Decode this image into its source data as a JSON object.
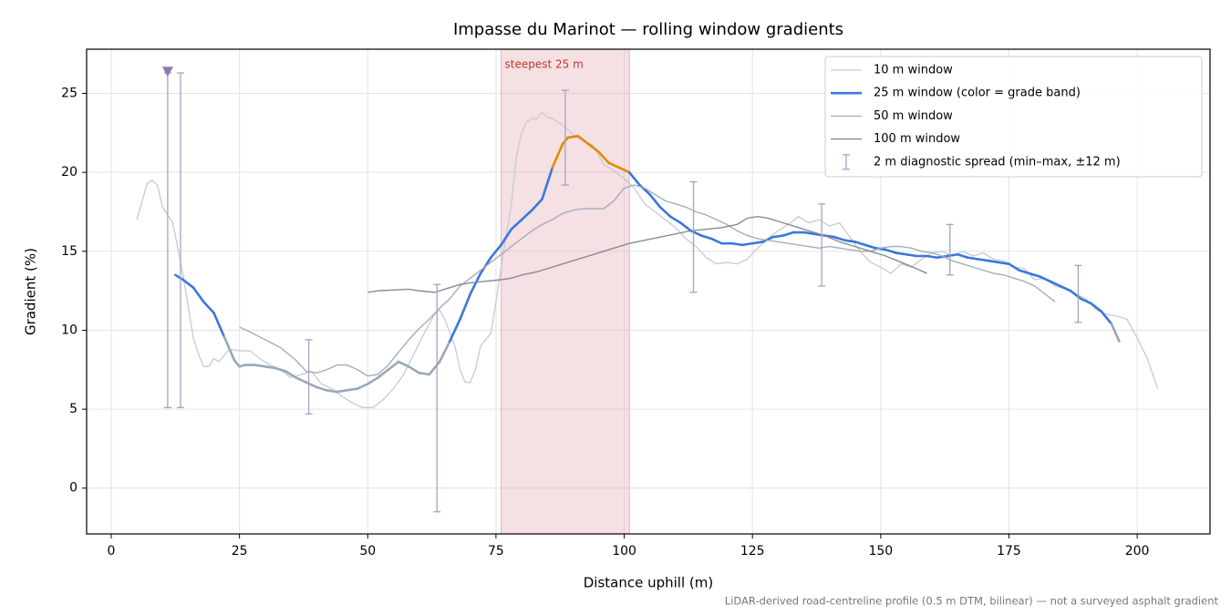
{
  "chart_data": {
    "type": "line",
    "title": "Impasse du Marinot — rolling window gradients",
    "xlabel": "Distance uphill (m)",
    "ylabel": "Gradient (%)",
    "footnote": "LiDAR-derived road-centreline profile (0.5 m DTM, bilinear) — not a surveyed asphalt gradient",
    "xlim": [
      -4.8,
      214.2
    ],
    "ylim": [
      -2.9,
      27.8
    ],
    "xticks": [
      0,
      25,
      50,
      75,
      100,
      125,
      150,
      175,
      200
    ],
    "yticks": [
      0,
      5,
      10,
      15,
      20,
      25
    ],
    "grid": true,
    "legend": "upper right",
    "highlight": {
      "label": "steepest 25 m",
      "x": [
        76,
        101
      ],
      "color": "#e3a7b0"
    },
    "series": [
      {
        "name": "10 m window",
        "color": "#c5cad3",
        "linewidth": 1.3,
        "x": [
          5,
          7,
          8,
          9,
          10,
          12,
          14,
          16,
          17,
          18,
          19,
          20,
          21,
          23,
          25,
          27,
          29,
          31,
          33,
          35,
          37,
          39,
          41,
          43,
          45,
          47,
          49,
          51,
          53,
          55,
          57,
          59,
          61,
          63,
          64,
          65,
          67,
          68,
          69,
          70,
          71,
          72,
          74,
          75,
          76,
          78,
          79,
          80,
          81,
          82,
          83,
          84,
          85,
          86,
          88,
          90,
          92,
          94,
          96,
          98,
          100,
          102,
          104,
          106,
          108,
          110,
          112,
          114,
          116,
          118,
          120,
          122,
          124,
          126,
          128,
          130,
          132,
          134,
          136,
          138,
          140,
          142,
          144,
          146,
          148,
          150,
          152,
          154,
          156,
          158,
          160,
          162,
          164,
          166,
          168,
          170,
          172,
          174,
          176,
          178,
          180,
          182,
          184,
          186,
          188,
          190,
          192,
          194,
          196,
          198,
          200,
          202,
          204
        ],
        "values": [
          17.0,
          19.3,
          19.5,
          19.2,
          17.8,
          16.8,
          13.5,
          9.5,
          8.5,
          7.7,
          7.7,
          8.2,
          8.0,
          8.8,
          8.7,
          8.7,
          8.2,
          7.8,
          7.5,
          7.0,
          7.2,
          7.4,
          6.6,
          6.3,
          5.8,
          5.4,
          5.1,
          5.1,
          5.6,
          6.3,
          7.2,
          8.5,
          9.8,
          11.0,
          11.3,
          10.7,
          9.0,
          7.5,
          6.7,
          6.7,
          7.5,
          9.0,
          9.8,
          11.8,
          14.0,
          18.0,
          21.0,
          22.5,
          23.2,
          23.4,
          23.4,
          23.8,
          23.5,
          23.4,
          23.0,
          22.4,
          22.0,
          21.7,
          20.5,
          20.1,
          19.6,
          19.0,
          18.0,
          17.5,
          17.0,
          16.5,
          15.8,
          15.3,
          14.6,
          14.2,
          14.3,
          14.2,
          14.5,
          15.2,
          15.8,
          16.3,
          16.7,
          17.2,
          16.8,
          17.0,
          16.6,
          16.8,
          15.9,
          15.0,
          14.3,
          14.0,
          13.6,
          14.2,
          14.0,
          14.5,
          14.9,
          15.0,
          14.7,
          15.0,
          14.7,
          14.9,
          14.5,
          14.4,
          14.0,
          13.9,
          13.2,
          13.3,
          12.8,
          12.6,
          12.3,
          12.0,
          11.3,
          11.0,
          10.9,
          10.7,
          9.5,
          8.2,
          6.3
        ]
      },
      {
        "name": "25 m window (color = grade band)",
        "color": "#3a78d8",
        "linewidth": 2.6,
        "grade_bands": {
          "thresholds": [
            10,
            20
          ],
          "colors": [
            "#9aa7b8",
            "#3a78d8",
            "#e08a00"
          ]
        },
        "x": [
          12.5,
          14,
          16,
          18,
          20,
          22,
          24,
          25,
          26,
          28,
          30,
          32,
          34,
          36,
          38,
          40,
          42,
          44,
          46,
          48,
          50,
          52,
          54,
          56,
          58,
          60,
          62,
          64,
          66,
          68,
          70,
          72,
          74,
          76,
          78,
          80,
          82,
          84,
          86,
          88,
          89,
          91,
          93,
          95,
          97,
          99,
          101,
          103,
          105,
          107,
          109,
          111,
          113,
          115,
          117,
          119,
          121,
          123,
          125,
          127,
          129,
          131,
          133,
          135,
          137,
          139,
          141,
          143,
          145,
          147,
          149,
          151,
          153,
          155,
          157,
          159,
          161,
          163,
          165,
          167,
          169,
          171,
          173,
          175,
          177,
          179,
          181,
          183,
          185,
          187,
          189,
          191,
          193,
          195,
          196.5
        ],
        "values": [
          13.5,
          13.2,
          12.7,
          11.8,
          11.1,
          9.6,
          8.1,
          7.7,
          7.8,
          7.8,
          7.7,
          7.6,
          7.4,
          7.0,
          6.7,
          6.4,
          6.2,
          6.1,
          6.2,
          6.3,
          6.6,
          7.0,
          7.5,
          8.0,
          7.7,
          7.3,
          7.2,
          8.0,
          9.3,
          10.7,
          12.3,
          13.6,
          14.6,
          15.4,
          16.4,
          17.0,
          17.6,
          18.3,
          20.3,
          21.8,
          22.2,
          22.3,
          21.8,
          21.3,
          20.6,
          20.3,
          20.0,
          19.2,
          18.6,
          17.8,
          17.2,
          16.8,
          16.3,
          16.0,
          15.8,
          15.5,
          15.5,
          15.4,
          15.5,
          15.6,
          15.9,
          16.0,
          16.2,
          16.2,
          16.1,
          16.0,
          15.9,
          15.7,
          15.6,
          15.4,
          15.2,
          15.1,
          14.9,
          14.8,
          14.7,
          14.7,
          14.6,
          14.7,
          14.8,
          14.6,
          14.5,
          14.4,
          14.3,
          14.2,
          13.8,
          13.6,
          13.4,
          13.1,
          12.8,
          12.5,
          12.0,
          11.7,
          11.2,
          10.4,
          9.3
        ]
      },
      {
        "name": "50 m window",
        "color": "#a4adbb",
        "linewidth": 1.4,
        "x": [
          25,
          27,
          30,
          33,
          36,
          38,
          40,
          42,
          44,
          46,
          48,
          50,
          52,
          54,
          56,
          58,
          60,
          62,
          64,
          66,
          68,
          70,
          72,
          74,
          76,
          78,
          80,
          82,
          84,
          86,
          88,
          90,
          92,
          94,
          96,
          98,
          100,
          102,
          104,
          106,
          108,
          110,
          112,
          114,
          116,
          118,
          120,
          122,
          124,
          126,
          128,
          130,
          132,
          134,
          136,
          138,
          140,
          142,
          144,
          146,
          148,
          150,
          152,
          154,
          156,
          158,
          160,
          162,
          164,
          166,
          168,
          170,
          172,
          174,
          176,
          178,
          180,
          182,
          184
        ],
        "values": [
          10.2,
          9.9,
          9.4,
          8.9,
          8.1,
          7.4,
          7.3,
          7.5,
          7.8,
          7.8,
          7.5,
          7.1,
          7.2,
          7.8,
          8.6,
          9.4,
          10.1,
          10.7,
          11.4,
          12.0,
          12.8,
          13.3,
          13.8,
          14.3,
          14.8,
          15.3,
          15.8,
          16.3,
          16.7,
          17.0,
          17.4,
          17.6,
          17.7,
          17.7,
          17.7,
          18.2,
          19.0,
          19.2,
          19.0,
          18.6,
          18.2,
          18.0,
          17.8,
          17.5,
          17.3,
          17.0,
          16.7,
          16.3,
          16.0,
          15.8,
          15.7,
          15.6,
          15.5,
          15.4,
          15.3,
          15.2,
          15.3,
          15.2,
          15.1,
          15.0,
          15.0,
          15.2,
          15.3,
          15.3,
          15.2,
          15.0,
          14.9,
          14.7,
          14.4,
          14.2,
          14.0,
          13.8,
          13.6,
          13.5,
          13.3,
          13.1,
          12.8,
          12.3,
          11.8
        ]
      },
      {
        "name": "100 m window",
        "color": "#858b98",
        "linewidth": 1.4,
        "x": [
          50,
          52,
          55,
          58,
          60,
          63,
          65,
          68,
          70,
          73,
          76,
          78,
          80,
          83,
          86,
          89,
          92,
          95,
          98,
          101,
          104,
          107,
          110,
          113,
          116,
          119,
          122,
          124,
          126,
          128,
          130,
          133,
          136,
          139,
          142,
          145,
          148,
          151,
          154,
          157,
          159
        ],
        "values": [
          12.4,
          12.5,
          12.55,
          12.6,
          12.5,
          12.4,
          12.6,
          12.9,
          13.0,
          13.1,
          13.2,
          13.3,
          13.5,
          13.7,
          14.0,
          14.3,
          14.6,
          14.9,
          15.2,
          15.5,
          15.7,
          15.9,
          16.1,
          16.3,
          16.4,
          16.5,
          16.7,
          17.1,
          17.2,
          17.1,
          16.9,
          16.6,
          16.3,
          16.0,
          15.6,
          15.3,
          15.0,
          14.7,
          14.3,
          13.9,
          13.6
        ]
      }
    ],
    "errorbars": {
      "name": "2 m diagnostic spread (min–max, ±12 m)",
      "color": "#a8a0c8",
      "x": [
        11,
        13.5,
        38.5,
        63.5,
        88.5,
        113.5,
        138.5,
        163.5,
        188.5
      ],
      "low": [
        5.1,
        5.1,
        4.7,
        -1.5,
        19.2,
        12.4,
        12.8,
        13.5,
        10.5
      ],
      "high": [
        26.3,
        26.3,
        9.4,
        12.9,
        25.2,
        19.4,
        18.0,
        16.7,
        14.1
      ]
    },
    "peak_marker": {
      "x": 11,
      "y": 26.4,
      "color": "#8a78b0"
    }
  }
}
